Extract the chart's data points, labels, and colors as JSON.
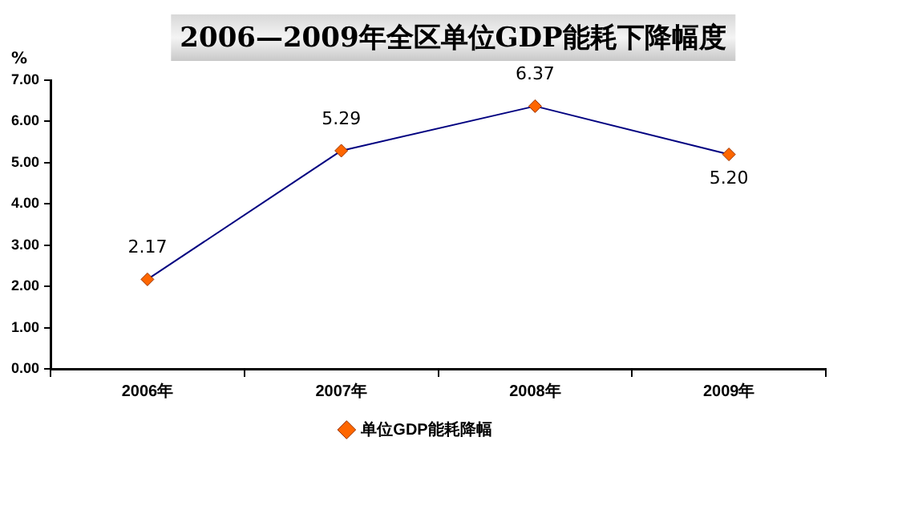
{
  "chart_data": {
    "type": "line",
    "title": "2006—2009年全区单位GDP能耗下降幅度",
    "ylabel": "%",
    "categories": [
      "2006年",
      "2007年",
      "2008年",
      "2009年"
    ],
    "series": [
      {
        "name": "单位GDP能耗降幅",
        "color": "#000080",
        "values": [
          2.17,
          5.29,
          6.37,
          5.2
        ],
        "value_labels": [
          "2.17",
          "5.29",
          "6.37",
          "5.20"
        ]
      }
    ],
    "ylim": [
      0,
      7
    ],
    "yticks": [
      {
        "value": 0,
        "label": "0.00"
      },
      {
        "value": 1,
        "label": "1.00"
      },
      {
        "value": 2,
        "label": "2.00"
      },
      {
        "value": 3,
        "label": "3.00"
      },
      {
        "value": 4,
        "label": "4.00"
      },
      {
        "value": 5,
        "label": "5.00"
      },
      {
        "value": 6,
        "label": "6.00"
      },
      {
        "value": 7,
        "label": "7.00"
      }
    ],
    "grid": false,
    "legend": "bottom",
    "marker": "diamond",
    "line_style": "solid"
  }
}
